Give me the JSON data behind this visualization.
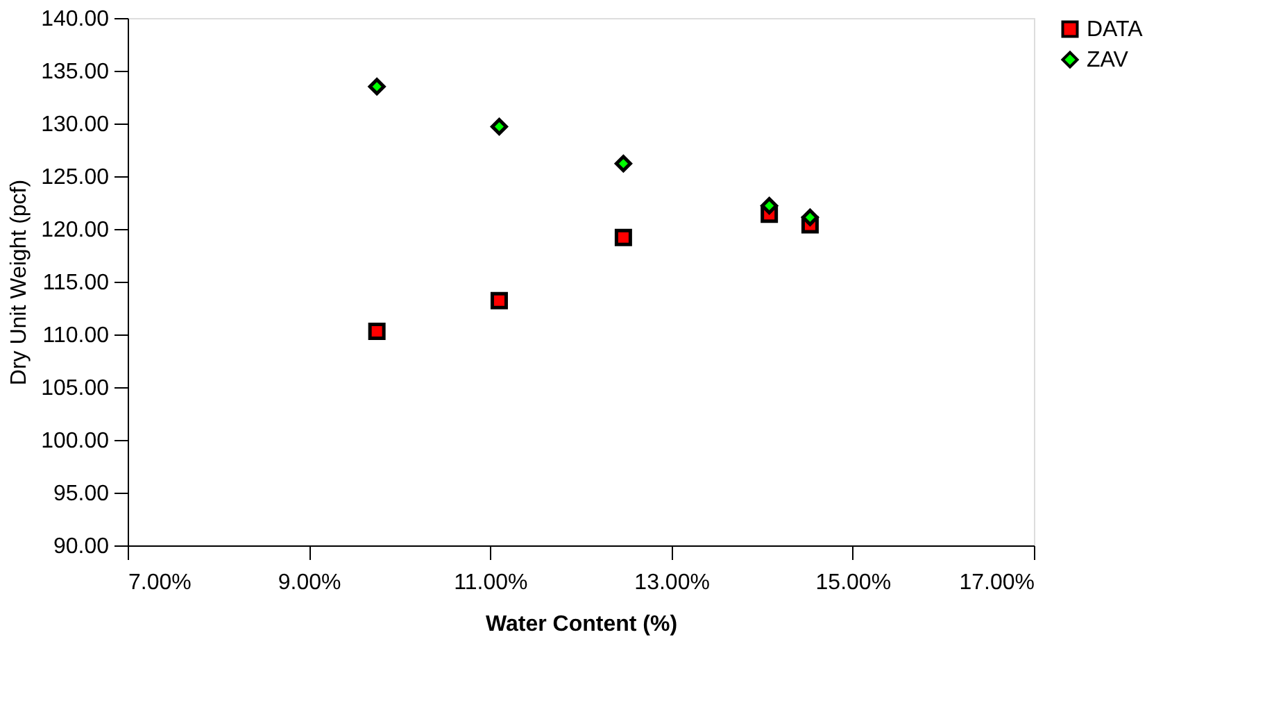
{
  "chart_data": {
    "type": "scatter",
    "xlabel": "Water Content (%)",
    "ylabel": "Dry Unit Weight (pcf)",
    "xlim": [
      7,
      17
    ],
    "xticks": [
      {
        "value": 7,
        "label": "7.00%"
      },
      {
        "value": 9,
        "label": "9.00%"
      },
      {
        "value": 11,
        "label": "11.00%"
      },
      {
        "value": 13,
        "label": "13.00%"
      },
      {
        "value": 15,
        "label": "15.00%"
      },
      {
        "value": 17,
        "label": "17.00%"
      }
    ],
    "ylim": [
      90,
      140
    ],
    "yticks": [
      {
        "value": 90,
        "label": "90.00"
      },
      {
        "value": 95,
        "label": "95.00"
      },
      {
        "value": 100,
        "label": "100.00"
      },
      {
        "value": 105,
        "label": "105.00"
      },
      {
        "value": 110,
        "label": "110.00"
      },
      {
        "value": 115,
        "label": "115.00"
      },
      {
        "value": 120,
        "label": "120.00"
      },
      {
        "value": 125,
        "label": "125.00"
      },
      {
        "value": 130,
        "label": "130.00"
      },
      {
        "value": 135,
        "label": "135.00"
      },
      {
        "value": 140,
        "label": "140.00"
      }
    ],
    "x": [
      9.75,
      11.1,
      12.47,
      14.08,
      14.53
    ],
    "series": [
      {
        "name": "DATA",
        "color": "#ff0000",
        "marker": "square",
        "values": [
          110.3,
          113.2,
          119.2,
          121.4,
          120.4
        ]
      },
      {
        "name": "ZAV",
        "color": "#00ff00",
        "marker": "diamond",
        "values": [
          133.5,
          129.7,
          126.2,
          122.2,
          121.1
        ]
      }
    ],
    "grid": false,
    "legend": "right"
  }
}
